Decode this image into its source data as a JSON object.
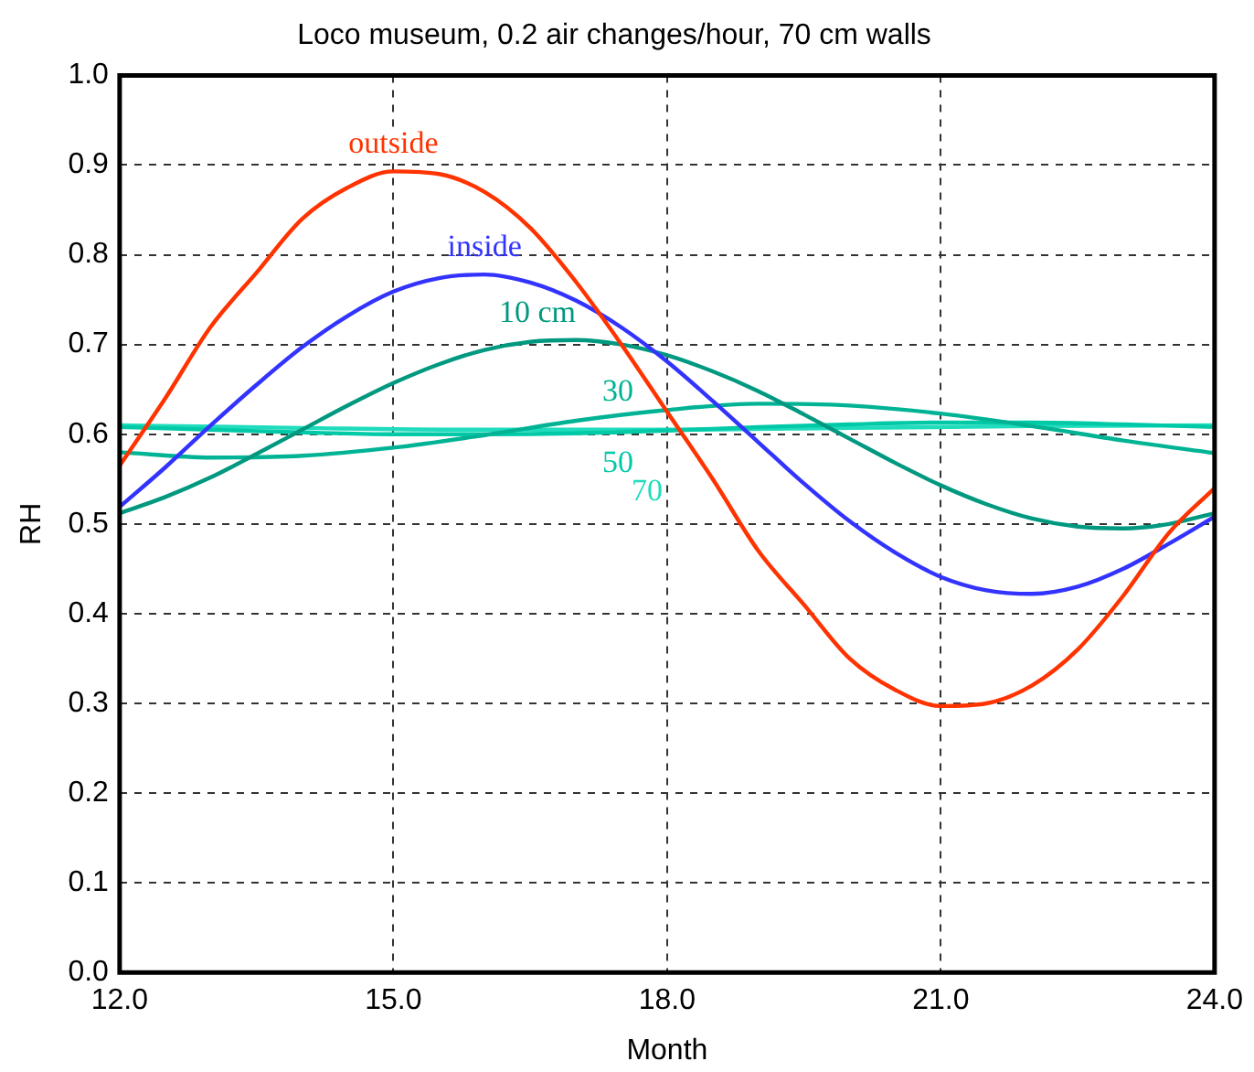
{
  "chart_data": {
    "type": "line",
    "title": "Loco museum, 0.2 air changes/hour, 70 cm walls",
    "xlabel": "Month",
    "ylabel": "RH",
    "xlim": [
      12,
      24
    ],
    "xticks": [
      {
        "value": 12,
        "label": "12.0"
      },
      {
        "value": 15,
        "label": "15.0"
      },
      {
        "value": 18,
        "label": "18.0"
      },
      {
        "value": 21,
        "label": "21.0"
      },
      {
        "value": 24,
        "label": "24.0"
      }
    ],
    "ylim": [
      0,
      1
    ],
    "yticks": [
      {
        "value": 0,
        "label": "0.0"
      },
      {
        "value": 0.1,
        "label": "0.1"
      },
      {
        "value": 0.2,
        "label": "0.2"
      },
      {
        "value": 0.3,
        "label": "0.3"
      },
      {
        "value": 0.4,
        "label": "0.4"
      },
      {
        "value": 0.5,
        "label": "0.5"
      },
      {
        "value": 0.6,
        "label": "0.6"
      },
      {
        "value": 0.7,
        "label": "0.7"
      },
      {
        "value": 0.8,
        "label": "0.8"
      },
      {
        "value": 0.9,
        "label": "0.9"
      },
      {
        "value": 1,
        "label": "1.0"
      }
    ],
    "grid": true,
    "line_style": "solid",
    "marker": "none",
    "legend": false,
    "series": [
      {
        "name": "outside",
        "color": "#ff3300",
        "x": [
          12,
          12.5,
          13,
          13.5,
          14,
          14.5,
          15,
          15.5,
          16,
          16.5,
          17,
          17.5,
          18,
          18.5,
          19,
          19.5,
          20,
          20.5,
          21,
          21.5,
          22,
          22.5,
          23,
          23.5,
          24
        ],
        "values": [
          0.565,
          0.64,
          0.72,
          0.78,
          0.84,
          0.875,
          0.893,
          0.89,
          0.87,
          0.83,
          0.77,
          0.7,
          0.625,
          0.55,
          0.47,
          0.41,
          0.35,
          0.315,
          0.297,
          0.3,
          0.32,
          0.36,
          0.42,
          0.49,
          0.54
        ]
      },
      {
        "name": "inside",
        "color": "#3333ff",
        "x": [
          12,
          12.5,
          13,
          13.5,
          14,
          14.5,
          15,
          15.5,
          16,
          16.5,
          17,
          17.5,
          18,
          18.5,
          19,
          19.5,
          20,
          20.5,
          21,
          21.5,
          22,
          22.5,
          23,
          23.5,
          24
        ],
        "values": [
          0.519,
          0.563,
          0.61,
          0.655,
          0.697,
          0.732,
          0.759,
          0.774,
          0.778,
          0.769,
          0.749,
          0.719,
          0.681,
          0.637,
          0.591,
          0.545,
          0.503,
          0.468,
          0.441,
          0.426,
          0.422,
          0.43,
          0.45,
          0.478,
          0.508
        ]
      },
      {
        "name": "10 cm",
        "color": "#009980",
        "x": [
          12,
          12.5,
          13,
          13.5,
          14,
          14.5,
          15,
          15.5,
          16,
          16.5,
          17,
          17.5,
          18,
          18.5,
          19,
          19.5,
          20,
          20.5,
          21,
          21.5,
          22,
          22.5,
          23,
          23.5,
          24
        ],
        "values": [
          0.512,
          0.53,
          0.552,
          0.578,
          0.605,
          0.632,
          0.657,
          0.678,
          0.694,
          0.703,
          0.705,
          0.7,
          0.688,
          0.67,
          0.648,
          0.622,
          0.595,
          0.568,
          0.543,
          0.522,
          0.506,
          0.497,
          0.495,
          0.5,
          0.512
        ]
      },
      {
        "name": "30",
        "color": "#00b394",
        "x": [
          12,
          13,
          14,
          15,
          16,
          17,
          18,
          19,
          20,
          21,
          22,
          23,
          24
        ],
        "values": [
          0.58,
          0.574,
          0.576,
          0.585,
          0.599,
          0.615,
          0.627,
          0.634,
          0.632,
          0.623,
          0.609,
          0.593,
          0.579
        ]
      },
      {
        "name": "50",
        "color": "#00c9a7",
        "x": [
          12,
          13,
          14,
          15,
          16,
          17,
          18,
          19,
          20,
          21,
          22,
          23,
          24
        ],
        "values": [
          0.608,
          0.605,
          0.602,
          0.6,
          0.6,
          0.601,
          0.604,
          0.608,
          0.611,
          0.613,
          0.613,
          0.611,
          0.608
        ]
      },
      {
        "name": "70",
        "color": "#1fdcbc",
        "x": [
          12,
          14,
          16,
          18,
          20,
          22,
          24
        ],
        "values": [
          0.61,
          0.607,
          0.605,
          0.605,
          0.607,
          0.609,
          0.61
        ]
      }
    ]
  }
}
